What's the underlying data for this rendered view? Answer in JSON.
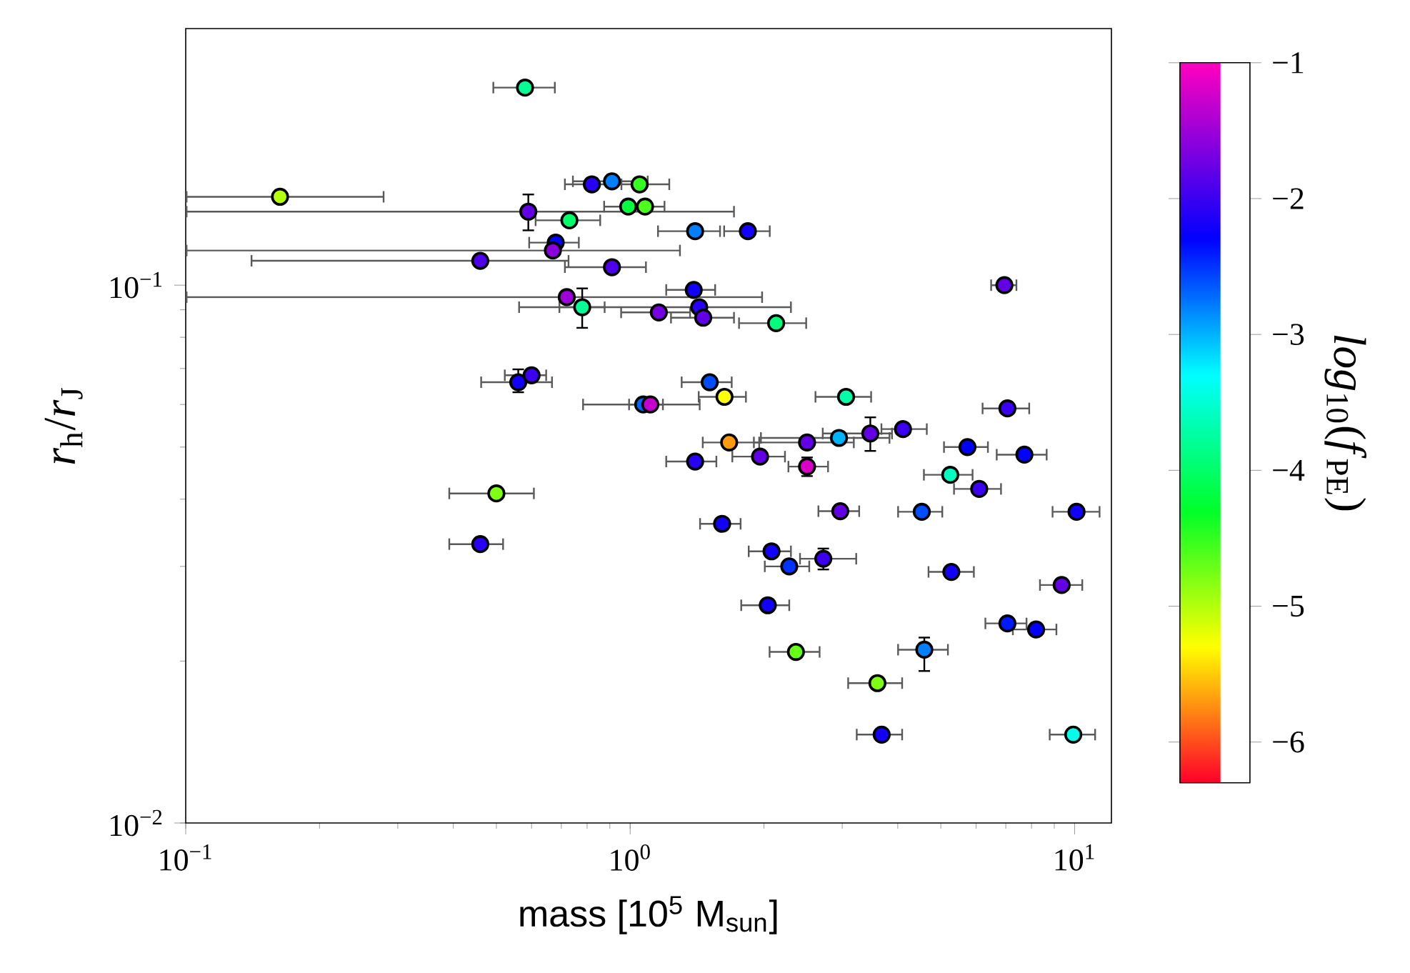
{
  "chart_data": {
    "type": "scatter",
    "marker": "circle",
    "log": "xy",
    "xlabel": "mass [10$^{5}$ M$_{sun}$]",
    "ylabel": "*r*$_{h}$/*r*$_{J}$",
    "clabel": "*log*$_{10}$(*f*$_{PE}$)",
    "xlim": [
      0.1,
      12.1
    ],
    "ylim": [
      0.01,
      0.3
    ],
    "xticks": [
      {
        "value": 0.1,
        "label": "10$^{−1}$"
      },
      {
        "value": 1,
        "label": "10$^{0}$"
      },
      {
        "value": 10,
        "label": "10$^{1}$"
      }
    ],
    "yticks": [
      {
        "value": 0.01,
        "label": "10$^{−2}$"
      },
      {
        "value": 0.1,
        "label": "10$^{−1}$"
      }
    ],
    "clim": [
      -6.3,
      -1
    ],
    "cticks": [
      {
        "value": -1,
        "label": "−1"
      },
      {
        "value": -2,
        "label": "−2"
      },
      {
        "value": -3,
        "label": "−3"
      },
      {
        "value": -4,
        "label": "−4"
      },
      {
        "value": -5,
        "label": "−5"
      },
      {
        "value": -6,
        "label": "−6"
      }
    ],
    "x": [
      0.58,
      0.163,
      0.82,
      0.91,
      1.05,
      0.59,
      0.73,
      0.99,
      1.08,
      0.68,
      0.67,
      0.46,
      0.91,
      0.72,
      0.78,
      1.16,
      1.39,
      1.43,
      1.46,
      2.13,
      0.56,
      0.6,
      1.51,
      1.63,
      3.06,
      1.07,
      1.11,
      1.67,
      2.5,
      2.95,
      3.47,
      4.11,
      1.4,
      1.96,
      2.5,
      0.5,
      2.97,
      1.61,
      0.46,
      2.08,
      2.28,
      2.72,
      2.04,
      2.36,
      5.25,
      6.1,
      4.53,
      10.1,
      5.28,
      9.35,
      7.06,
      8.19,
      4.59,
      3.6,
      3.68,
      9.93,
      6.95,
      7.06,
      5.74,
      7.71,
      1.4,
      1.84
    ],
    "values": [
      0.233,
      0.146,
      0.154,
      0.156,
      0.154,
      0.137,
      0.132,
      0.14,
      0.14,
      0.12,
      0.116,
      0.111,
      0.108,
      0.095,
      0.091,
      0.089,
      0.098,
      0.091,
      0.087,
      0.085,
      0.066,
      0.068,
      0.066,
      0.062,
      0.062,
      0.06,
      0.06,
      0.051,
      0.051,
      0.052,
      0.053,
      0.054,
      0.047,
      0.048,
      0.046,
      0.041,
      0.038,
      0.036,
      0.033,
      0.032,
      0.03,
      0.031,
      0.0254,
      0.0208,
      0.0444,
      0.0418,
      0.0379,
      0.0379,
      0.0293,
      0.0277,
      0.0235,
      0.0229,
      0.021,
      0.0182,
      0.0146,
      0.0146,
      0.1,
      0.059,
      0.05,
      0.0484,
      0.126,
      0.126
    ],
    "cvalues": [
      -3.8,
      -5.0,
      -2.1,
      -2.8,
      -4.5,
      -1.8,
      -4.0,
      -4.2,
      -4.6,
      -2.3,
      -1.6,
      -1.9,
      -1.9,
      -1.5,
      -3.8,
      -1.7,
      -2.2,
      -2.1,
      -1.8,
      -3.9,
      -2.2,
      -2.0,
      -2.6,
      -5.3,
      -3.7,
      -2.7,
      -1.3,
      -5.7,
      -1.8,
      -3.0,
      -1.8,
      -2.0,
      -2.1,
      -1.8,
      -1.2,
      -4.8,
      -1.8,
      -2.2,
      -2.1,
      -2.2,
      -2.5,
      -2.0,
      -2.2,
      -4.7,
      -3.6,
      -2.0,
      -2.6,
      -2.2,
      -2.2,
      -1.8,
      -2.4,
      -2.3,
      -2.8,
      -4.8,
      -2.2,
      -3.4,
      -1.8,
      -2.0,
      -2.3,
      -2.3,
      -2.8,
      -2.2
    ],
    "xerrors": [
      [
        0.49,
        0.68
      ],
      [
        0.1,
        0.28
      ],
      [
        0.71,
        0.96
      ],
      [
        0.74,
        1.1
      ],
      [
        0.91,
        1.23
      ],
      [
        0.1,
        1.72
      ],
      [
        0.61,
        0.86
      ],
      [
        0.87,
        1.09
      ],
      [
        0.96,
        1.2
      ],
      [
        0.59,
        0.77
      ],
      [
        0.1,
        1.3
      ],
      [
        0.14,
        0.73
      ],
      [
        0.71,
        1.09
      ],
      [
        0.1,
        1.99
      ],
      [
        0.56,
        0.88
      ],
      [
        0.95,
        1.37
      ],
      [
        1.2,
        1.56
      ],
      [
        0.69,
        2.31
      ],
      [
        1.23,
        1.72
      ],
      [
        1.75,
        2.5
      ],
      [
        0.46,
        0.67
      ],
      [
        0.52,
        0.65
      ],
      [
        1.3,
        1.7
      ],
      [
        1.42,
        1.83
      ],
      [
        2.6,
        3.5
      ],
      [
        0.78,
        1.19
      ],
      [
        0.99,
        1.44
      ],
      [
        1.45,
        1.96
      ],
      [
        1.89,
        3.2
      ],
      [
        1.96,
        3.85
      ],
      [
        2.7,
        3.9
      ],
      [
        3.66,
        4.67
      ],
      [
        1.2,
        1.57
      ],
      [
        1.69,
        2.24
      ],
      [
        2.26,
        2.8
      ],
      [
        0.39,
        0.61
      ],
      [
        2.64,
        3.29
      ],
      [
        1.43,
        1.78
      ],
      [
        0.39,
        0.52
      ],
      [
        1.84,
        2.31
      ],
      [
        2.0,
        2.54
      ],
      [
        2.4,
        3.24
      ],
      [
        1.77,
        2.29
      ],
      [
        2.05,
        2.68
      ],
      [
        4.56,
        5.92
      ],
      [
        5.33,
        6.86
      ],
      [
        3.99,
        5.06
      ],
      [
        8.88,
        11.43
      ],
      [
        4.67,
        5.96
      ],
      [
        8.32,
        10.45
      ],
      [
        6.27,
        7.83
      ],
      [
        7.23,
        9.14
      ],
      [
        3.99,
        5.21
      ],
      [
        3.08,
        4.11
      ],
      [
        3.22,
        4.11
      ],
      [
        8.75,
        11.17
      ],
      [
        6.46,
        7.43
      ],
      [
        6.18,
        7.94
      ],
      [
        5.06,
        6.41
      ],
      [
        6.65,
        8.69
      ],
      [
        1.15,
        1.6
      ],
      [
        1.62,
        2.07
      ]
    ],
    "errors": [
      null,
      null,
      null,
      null,
      null,
      [
        0.126,
        0.148
      ],
      null,
      null,
      null,
      null,
      null,
      null,
      null,
      null,
      [
        0.083,
        0.099
      ],
      null,
      null,
      null,
      null,
      null,
      [
        0.063,
        0.07
      ],
      null,
      null,
      null,
      null,
      null,
      null,
      null,
      null,
      null,
      [
        0.049,
        0.057
      ],
      null,
      null,
      null,
      [
        0.044,
        0.048
      ],
      null,
      null,
      null,
      null,
      null,
      null,
      [
        0.0295,
        0.0325
      ],
      null,
      null,
      null,
      null,
      null,
      null,
      null,
      null,
      null,
      null,
      [
        0.0191,
        0.0222
      ],
      null,
      null,
      null,
      null,
      null,
      null,
      null,
      null,
      null
    ]
  }
}
